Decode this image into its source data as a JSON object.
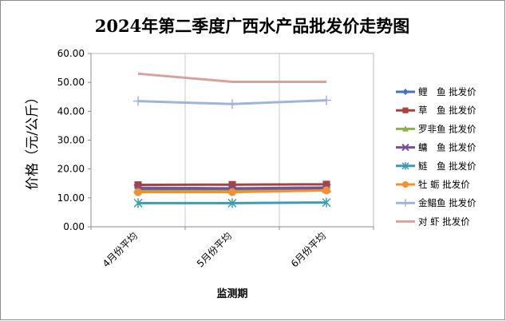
{
  "chart_data": {
    "type": "line",
    "title": "2024年第二季度广西水产品批发价走势图",
    "xlabel": "监测期",
    "ylabel": "价格（元/公斤）",
    "ylim": [
      0,
      60
    ],
    "yticks": [
      "0.00",
      "10.00",
      "20.00",
      "30.00",
      "40.00",
      "50.00",
      "60.00"
    ],
    "categories": [
      "4月份平均",
      "5月份平均",
      "6月份平均"
    ],
    "grid": "vertical category lines",
    "legend_position": "right",
    "series": [
      {
        "name": "鲤　鱼 批发价",
        "values": [
          13.5,
          13.3,
          13.6
        ],
        "color": "#4472C4",
        "marker": "diamond"
      },
      {
        "name": "草　鱼 批发价",
        "values": [
          14.5,
          14.6,
          14.7
        ],
        "color": "#A5433F",
        "marker": "square"
      },
      {
        "name": "罗非鱼 批发价",
        "values": [
          12.6,
          12.5,
          12.8
        ],
        "color": "#8DB04B",
        "marker": "triangle"
      },
      {
        "name": "鳙　鱼 批发价",
        "values": [
          13.2,
          13.2,
          13.4
        ],
        "color": "#7A4E97",
        "marker": "x"
      },
      {
        "name": "鲢　鱼 批发价",
        "values": [
          8.2,
          8.2,
          8.4
        ],
        "color": "#3C9CB5",
        "marker": "asterisk"
      },
      {
        "name": "牡 蛎 批发价",
        "values": [
          12.0,
          12.0,
          12.6
        ],
        "color": "#F2912F",
        "marker": "circle"
      },
      {
        "name": "金鲳鱼 批发价",
        "values": [
          43.5,
          42.5,
          43.8
        ],
        "color": "#9DB5DA",
        "marker": "plus"
      },
      {
        "name": "对 虾 批发价",
        "values": [
          53.0,
          50.2,
          50.2
        ],
        "color": "#D9A19E",
        "marker": "none"
      }
    ]
  }
}
